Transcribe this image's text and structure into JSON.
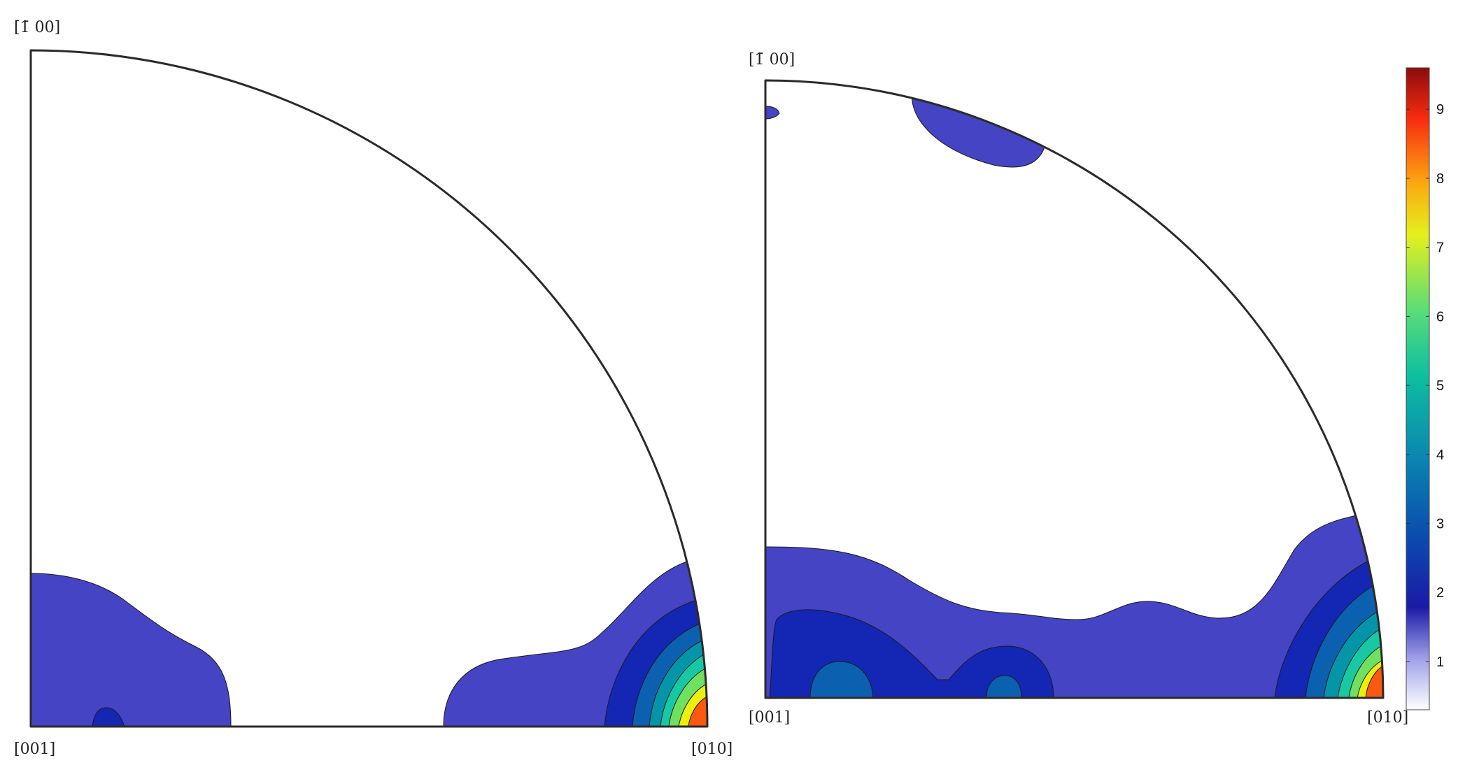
{
  "colors": {
    "level_1": "#4444c4",
    "level_2": "#1426b4",
    "level_3": "#0c60b0",
    "level_4": "#0496a8",
    "level_5": "#18c8a4",
    "level_6": "#70e060",
    "level_7": "#ecf00c",
    "level_8": "#fc5810",
    "frame": "#2b2b2b"
  },
  "plots": {
    "left": {
      "label_top": "[̅0 0]",
      "label_top_text": "[1̄ 00]",
      "label_origin": "[001]",
      "label_right": "[010]"
    },
    "right": {
      "label_top_text": "[1̄ 00]",
      "label_origin": "[001]",
      "label_right": "[010]"
    }
  },
  "colorbar": {
    "min": 0.3,
    "max": 9.6,
    "ticks": [
      "1",
      "2",
      "3",
      "4",
      "5",
      "6",
      "7",
      "8",
      "9"
    ],
    "colormap": [
      "#ffffff",
      "#7f7fe6",
      "#1a1aa8",
      "#0a50b0",
      "#0a8ab0",
      "#0cbfa0",
      "#58dc78",
      "#d8f020",
      "#fca810",
      "#f82c10",
      "#8c0c0c"
    ]
  }
}
